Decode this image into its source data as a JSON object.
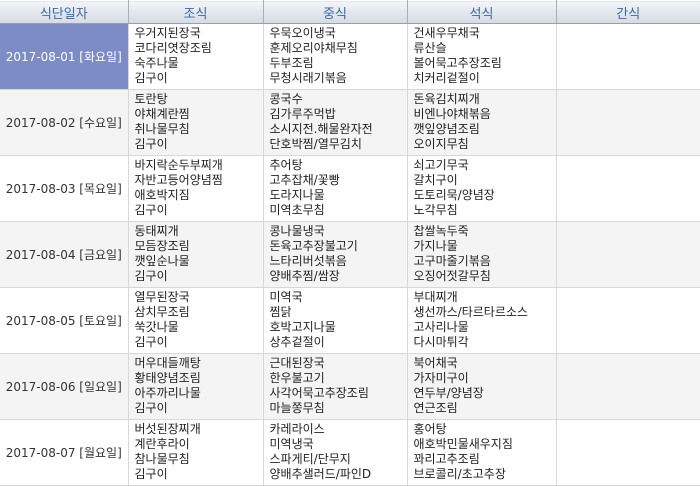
{
  "colors": {
    "header_text": "#3c6a9e",
    "selected_date_bg": "#7d8cc5",
    "row_stripe": "#f4f4f4"
  },
  "table": {
    "columns": [
      "식단일자",
      "조식",
      "중식",
      "석식",
      "간식"
    ],
    "rows": [
      {
        "date": "2017-08-01  [화요일]",
        "selected": true,
        "breakfast": [
          "우거지된장국",
          "코다리엿장조림",
          "숙주나물",
          "김구이"
        ],
        "lunch": [
          "우묵오이냉국",
          "훈제오리야채무침",
          "두부조림",
          "무청시래기볶음"
        ],
        "dinner": [
          "건새우무채국",
          "류산슬",
          "볼어묵고추장조림",
          "치커리겉절이"
        ],
        "snack": []
      },
      {
        "date": "2017-08-02  [수요일]",
        "selected": false,
        "breakfast": [
          "토란탕",
          "야채계란찜",
          "취나물무침",
          "김구이"
        ],
        "lunch": [
          "콩국수",
          "김가루주먹밥",
          "소시지전.해물완자전",
          "단호박찜/열무김치"
        ],
        "dinner": [
          "돈육김치찌개",
          "비엔나야채볶음",
          "깻잎양념조림",
          "오이지무침"
        ],
        "snack": []
      },
      {
        "date": "2017-08-03  [목요일]",
        "selected": false,
        "breakfast": [
          "바지락순두부찌개",
          "자반고등어양념찜",
          "애호박지짐",
          "김구이"
        ],
        "lunch": [
          "추어탕",
          "고추잡채/꽃빵",
          "도라지나물",
          "미역초무침"
        ],
        "dinner": [
          "쇠고기무국",
          "갈치구이",
          "도토리묵/양념장",
          "노각무침"
        ],
        "snack": []
      },
      {
        "date": "2017-08-04  [금요일]",
        "selected": false,
        "breakfast": [
          "동태찌개",
          "모듬장조림",
          "깻잎순나물",
          "김구이"
        ],
        "lunch": [
          "콩나물냉국",
          "돈육고추장불고기",
          "느타리버섯볶음",
          "양배추찜/쌈장"
        ],
        "dinner": [
          "찹쌀녹두죽",
          "가지나물",
          "고구마줄기볶음",
          "오징어젓갈무침"
        ],
        "snack": []
      },
      {
        "date": "2017-08-05  [토요일]",
        "selected": false,
        "breakfast": [
          "열무된장국",
          "삼치무조림",
          "쑥갓나물",
          "김구이"
        ],
        "lunch": [
          "미역국",
          "찜닭",
          "호박고지나물",
          "상추겉절이"
        ],
        "dinner": [
          "부대찌개",
          "생선까스/타르타르소스",
          "고사리나물",
          "다시마튀각"
        ],
        "snack": []
      },
      {
        "date": "2017-08-06  [일요일]",
        "selected": false,
        "breakfast": [
          "머우대들깨탕",
          "황태양념조림",
          "아주까리나물",
          "김구이"
        ],
        "lunch": [
          "근대된장국",
          "한우불고기",
          "사각어묵고추장조림",
          "마늘쫑무침"
        ],
        "dinner": [
          "북어채국",
          "가자미구이",
          "연두부/양념장",
          "연근조림"
        ],
        "snack": []
      },
      {
        "date": "2017-08-07  [월요일]",
        "selected": false,
        "breakfast": [
          "버섯된장찌개",
          "계란후라이",
          "참나물무침",
          "김구이"
        ],
        "lunch": [
          "카레라이스",
          "미역냉국",
          "스파게티/단무지",
          "양배추샐러드/파인D"
        ],
        "dinner": [
          "홍어탕",
          "애호박민물새우지짐",
          "꽈리고추조림",
          "브로콜리/초고추장"
        ],
        "snack": []
      }
    ]
  }
}
